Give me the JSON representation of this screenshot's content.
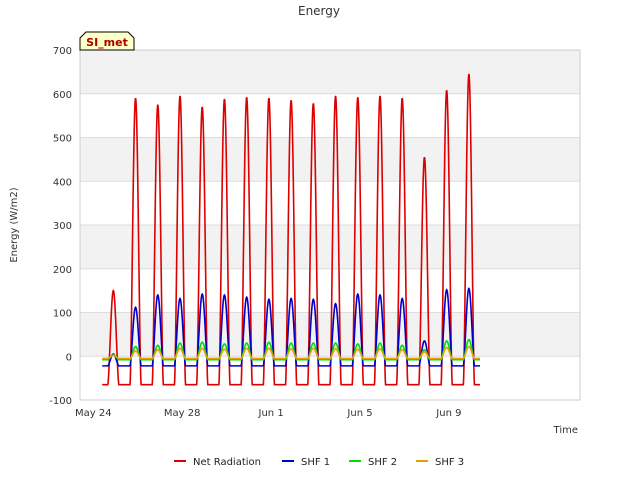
{
  "chart_data": {
    "type": "line",
    "title": "Energy",
    "xlabel": "Time",
    "ylabel": "Energy (W/m2)",
    "badge": "SI_met",
    "ylim": [
      -100,
      700
    ],
    "yticks": [
      -100,
      0,
      100,
      200,
      300,
      400,
      500,
      600,
      700
    ],
    "x_range_days": [
      0,
      18
    ],
    "xticks": [
      {
        "day": 0,
        "label": "May 24"
      },
      {
        "day": 4,
        "label": "May 28"
      },
      {
        "day": 8,
        "label": "Jun 1"
      },
      {
        "day": 12,
        "label": "Jun 5"
      },
      {
        "day": 16,
        "label": "Jun 9"
      }
    ],
    "grid": true,
    "legend_position": "bottom",
    "series": [
      {
        "name": "Net Radiation",
        "color": "#dd0000",
        "night": -65,
        "daily_peaks": [
          150,
          590,
          575,
          595,
          570,
          588,
          592,
          590,
          585,
          578,
          595,
          592,
          595,
          590,
          455,
          608,
          645
        ]
      },
      {
        "name": "SHF 1",
        "color": "#0000cc",
        "night": -22,
        "daily_peaks": [
          5,
          112,
          140,
          132,
          142,
          140,
          135,
          130,
          132,
          130,
          120,
          142,
          140,
          132,
          35,
          152,
          155
        ]
      },
      {
        "name": "SHF 2",
        "color": "#00dd00",
        "night": -8,
        "daily_peaks": [
          3,
          22,
          25,
          30,
          32,
          28,
          30,
          32,
          30,
          30,
          30,
          28,
          30,
          25,
          15,
          35,
          38
        ]
      },
      {
        "name": "SHF 3",
        "color": "#e6a000",
        "night": -5,
        "daily_peaks": [
          2,
          12,
          15,
          18,
          18,
          16,
          18,
          18,
          17,
          18,
          17,
          16,
          17,
          15,
          10,
          20,
          22
        ]
      }
    ]
  }
}
